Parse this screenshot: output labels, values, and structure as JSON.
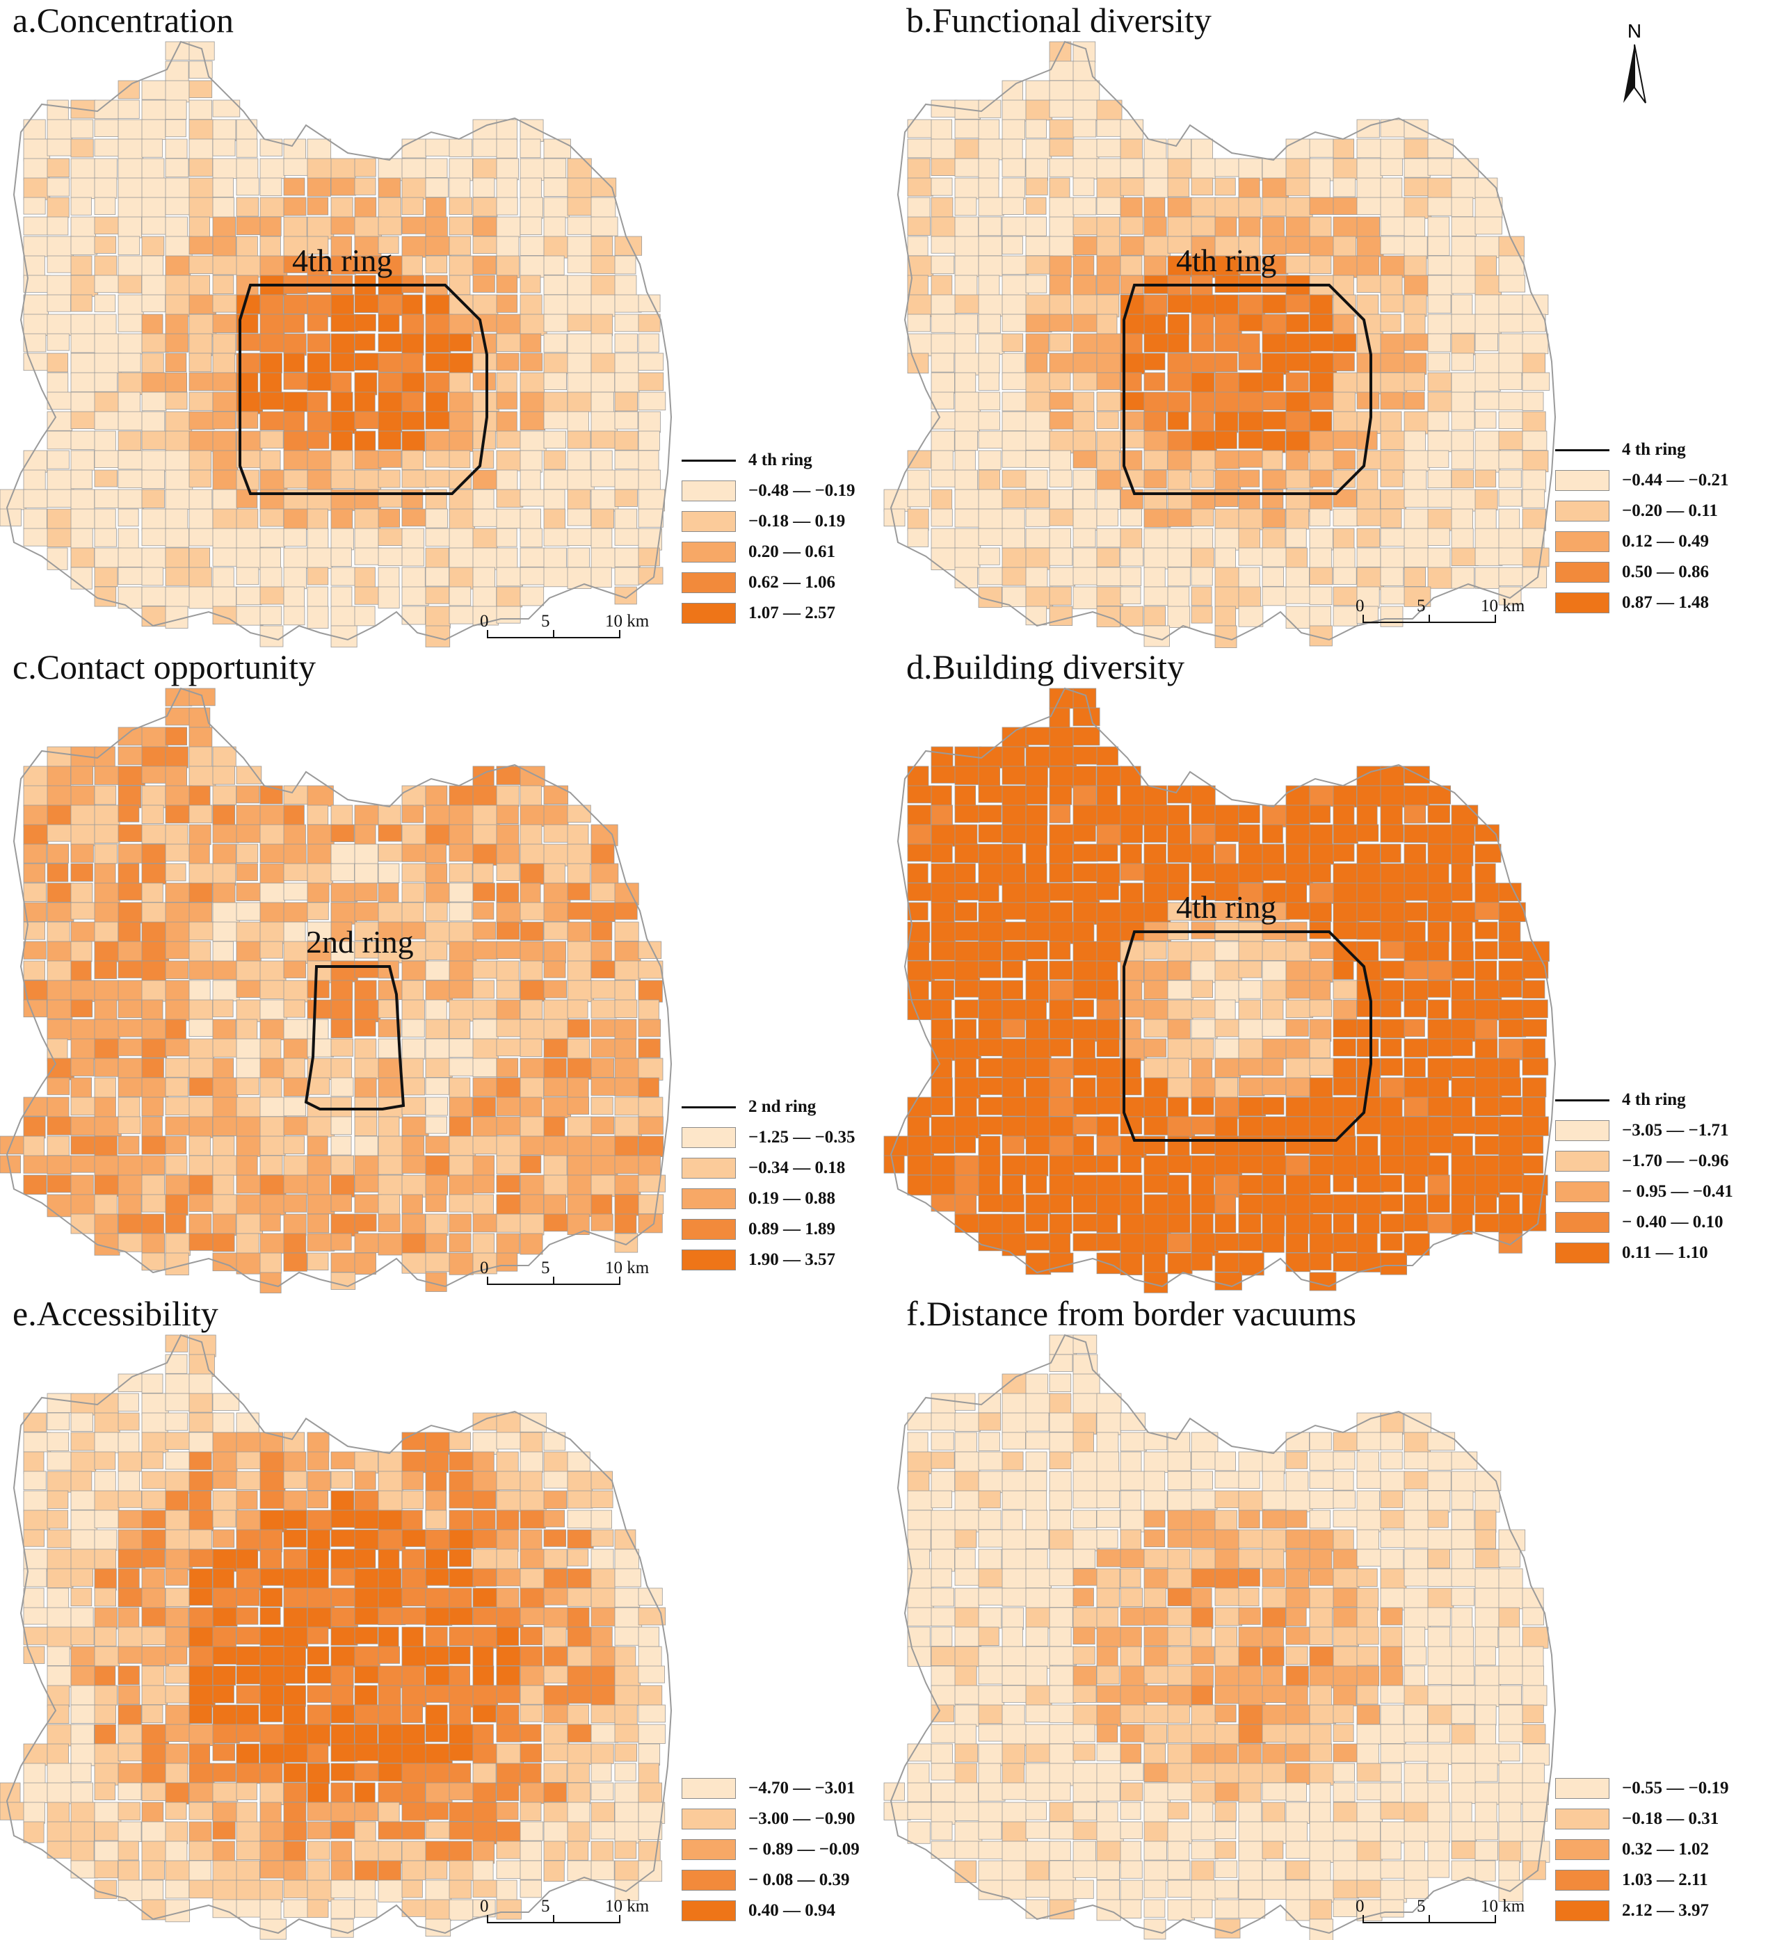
{
  "colors": {
    "class1": "#fde6c9",
    "class2": "#fbcb9a",
    "class3": "#f7a866",
    "class4": "#f28a3b",
    "class5": "#ee7518",
    "boundary": "#9a9a9a",
    "ring": "#111111"
  },
  "north_arrow": {
    "label": "N"
  },
  "scale_bar": {
    "ticks": [
      "0",
      "5",
      "10 km"
    ]
  },
  "panels": [
    {
      "id": "a",
      "title": "a.Concentration",
      "ring_map_label": "4th ring",
      "ring_legend_label": "4 th ring",
      "legend": [
        "−0.48 — −0.19",
        "−0.18 — 0.19",
        "0.20 — 0.61",
        "0.62 — 1.06",
        "1.07 — 2.57"
      ]
    },
    {
      "id": "b",
      "title": "b.Functional diversity",
      "ring_map_label": "4th ring",
      "ring_legend_label": "4 th ring",
      "legend": [
        "−0.44 — −0.21",
        "−0.20 — 0.11",
        "0.12 — 0.49",
        "0.50 — 0.86",
        "0.87 — 1.48"
      ]
    },
    {
      "id": "c",
      "title": "c.Contact opportunity",
      "ring_map_label": "2nd ring",
      "ring_legend_label": "2 nd ring",
      "legend": [
        "−1.25 — −0.35",
        "−0.34 — 0.18",
        "0.19 — 0.88",
        "0.89 — 1.89",
        "1.90 — 3.57"
      ]
    },
    {
      "id": "d",
      "title": "d.Building diversity",
      "ring_map_label": "4th ring",
      "ring_legend_label": "4 th ring",
      "legend": [
        "−3.05 — −1.71",
        "−1.70 — −0.96",
        "− 0.95 — −0.41",
        "− 0.40 — 0.10",
        "0.11 — 1.10"
      ]
    },
    {
      "id": "e",
      "title": "e.Accessibility",
      "ring_map_label": "",
      "ring_legend_label": "",
      "legend": [
        "−4.70 — −3.01",
        "−3.00 — −0.90",
        "− 0.89 — −0.09",
        "− 0.08 — 0.39",
        "0.40 — 0.94"
      ]
    },
    {
      "id": "f",
      "title": "f.Distance from border vacuums",
      "ring_map_label": "",
      "ring_legend_label": "",
      "legend": [
        "−0.55 — −0.19",
        "−0.18 — 0.31",
        "0.32 — 1.02",
        "1.03 — 2.11",
        "2.12 — 3.97"
      ]
    }
  ]
}
